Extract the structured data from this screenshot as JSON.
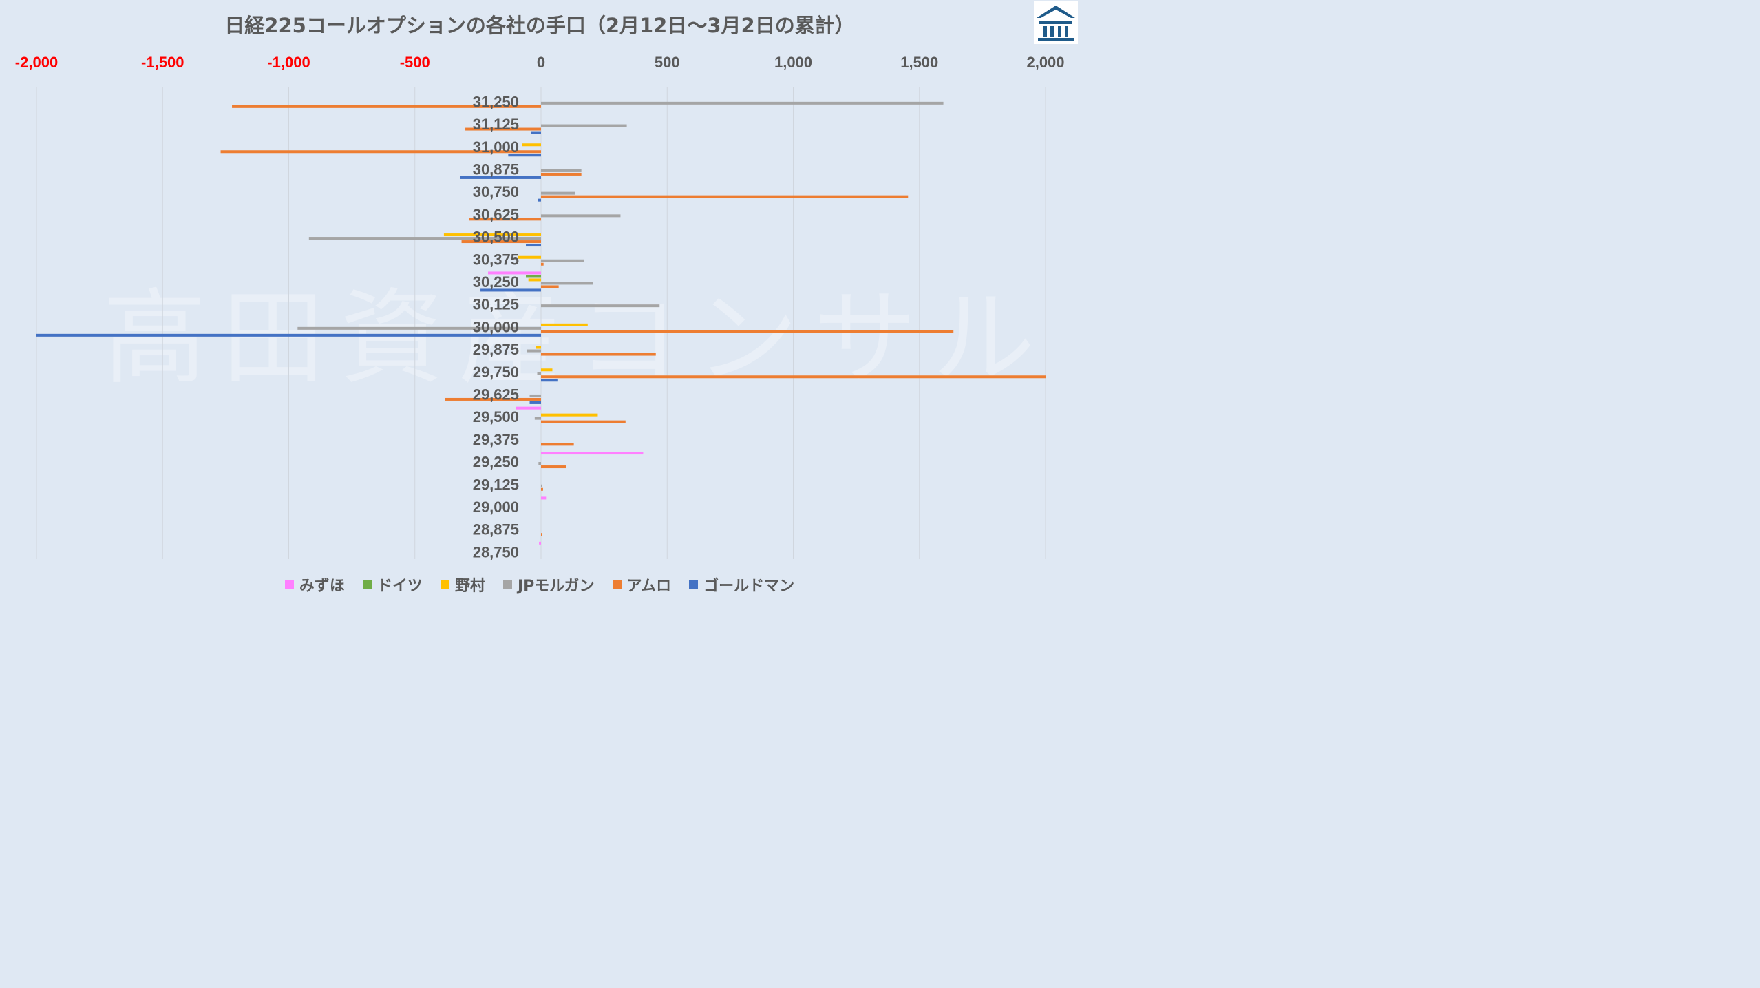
{
  "title": "日経225コールオプションの各社の手口（2月12日〜3月2日の累計）",
  "watermark": "高田資産コンサル",
  "colors": {
    "background": "#dfe8f3",
    "negative_tick": "#ff0000",
    "positive_tick": "#595959",
    "gridline": "#d0d6de",
    "logo": "#1f5b8a"
  },
  "logo_icon": "temple-building-icon",
  "chart_data": {
    "type": "bar",
    "orientation": "horizontal",
    "title": "日経225コールオプションの各社の手口（2月12日〜3月2日の累計）",
    "xlim": [
      -2000,
      2000
    ],
    "x_ticks": [
      -2000,
      -1500,
      -1000,
      -500,
      0,
      500,
      1000,
      1500,
      2000
    ],
    "x_tick_labels": [
      "-2,000",
      "-1,500",
      "-1,000",
      "-500",
      "0",
      "500",
      "1,000",
      "1,500",
      "2,000"
    ],
    "grid": true,
    "legend_position": "bottom",
    "categories": [
      "31,250",
      "31,125",
      "31,000",
      "30,875",
      "30,750",
      "30,625",
      "30,500",
      "30,375",
      "30,250",
      "30,125",
      "30,000",
      "29,875",
      "29,750",
      "29,625",
      "29,500",
      "29,375",
      "29,250",
      "29,125",
      "29,000",
      "28,875",
      "28,750"
    ],
    "series": [
      {
        "name": "みずほ",
        "color": "#ff80ff",
        "values": [
          0,
          0,
          0,
          0,
          0,
          0,
          0,
          0,
          -210,
          0,
          0,
          0,
          0,
          0,
          -100,
          0,
          405,
          0,
          20,
          0,
          -8
        ]
      },
      {
        "name": "ドイツ",
        "color": "#70ad47",
        "values": [
          0,
          0,
          0,
          0,
          0,
          0,
          0,
          0,
          -60,
          0,
          0,
          0,
          0,
          0,
          0,
          0,
          0,
          0,
          0,
          0,
          0
        ]
      },
      {
        "name": "野村",
        "color": "#ffc000",
        "values": [
          0,
          0,
          -75,
          0,
          0,
          0,
          -385,
          -90,
          -50,
          0,
          185,
          -20,
          45,
          0,
          225,
          0,
          0,
          0,
          0,
          0,
          0
        ]
      },
      {
        "name": "JPモルガン",
        "color": "#a5a5a5",
        "values": [
          1595,
          340,
          0,
          160,
          135,
          315,
          -920,
          170,
          205,
          470,
          -965,
          -55,
          -15,
          -45,
          -25,
          0,
          -10,
          5,
          0,
          0,
          0
        ]
      },
      {
        "name": "アムロ",
        "color": "#ed7d31",
        "values": [
          -1225,
          -300,
          -1270,
          160,
          1455,
          -285,
          -315,
          10,
          70,
          0,
          1635,
          455,
          2000,
          -380,
          335,
          130,
          100,
          8,
          0,
          5,
          0
        ]
      },
      {
        "name": "ゴールドマン",
        "color": "#4472c4",
        "values": [
          0,
          -40,
          -130,
          -320,
          -12,
          0,
          -60,
          0,
          -240,
          0,
          -2000,
          0,
          65,
          -45,
          0,
          0,
          0,
          0,
          0,
          0,
          0
        ]
      }
    ]
  }
}
